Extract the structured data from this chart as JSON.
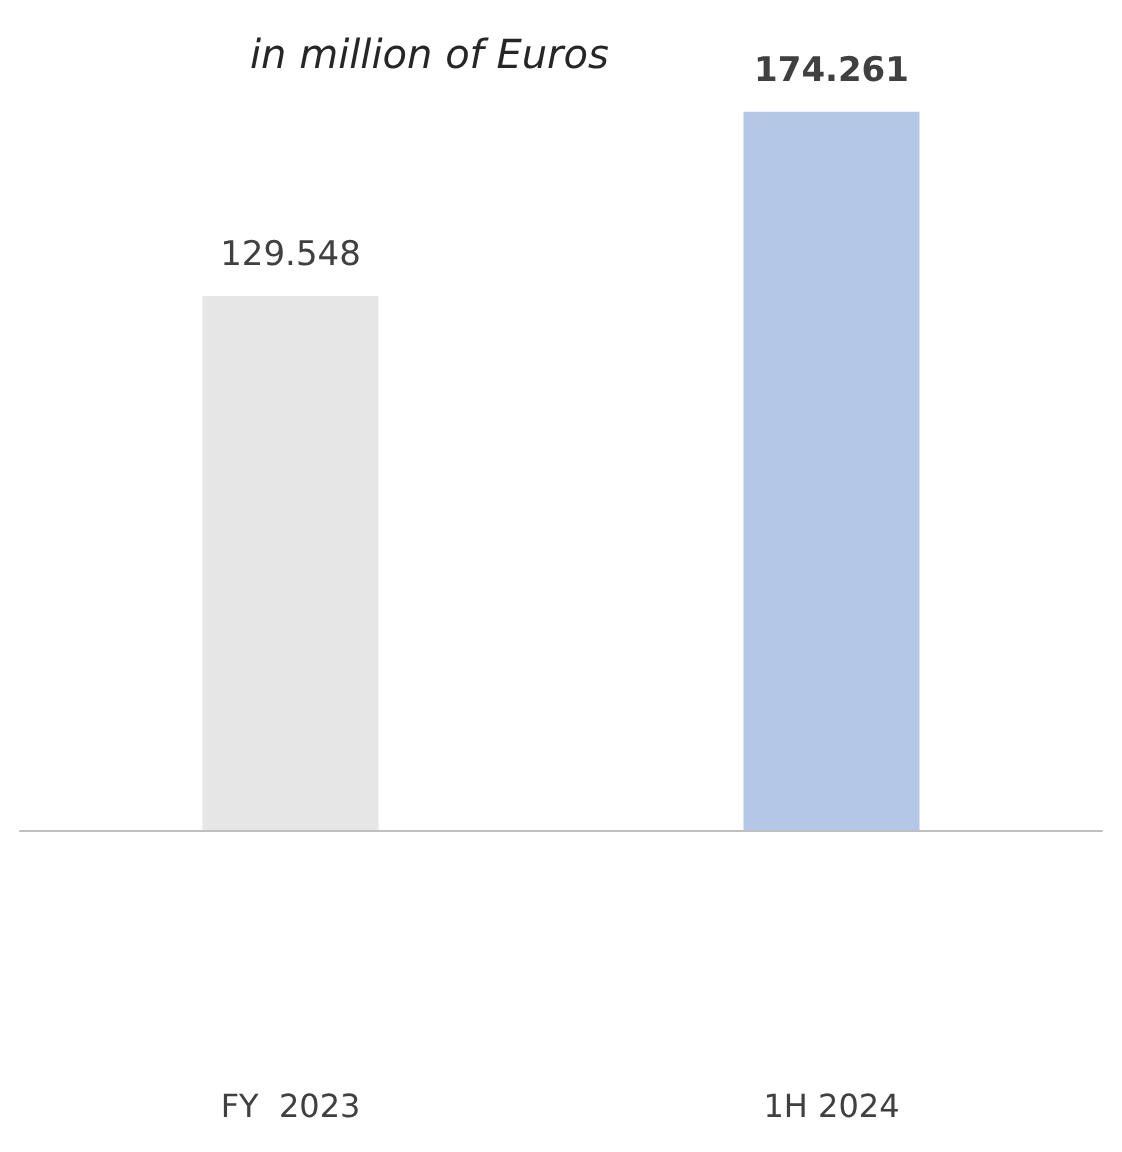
{
  "chart_data": {
    "type": "bar",
    "title": "in million of Euros",
    "categories": [
      "FY  2023",
      "1H 2024"
    ],
    "values": [
      129.548,
      174.261
    ],
    "colors": [
      "#e7e6e6",
      "#b4c7e7"
    ],
    "data_labels": true
  }
}
